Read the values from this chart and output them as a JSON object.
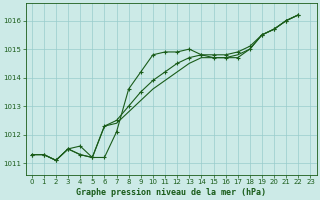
{
  "title": "Graphe pression niveau de la mer (hPa)",
  "bg_color": "#cceae7",
  "grid_color": "#99cccc",
  "line_color": "#1a5c1a",
  "xlim": [
    -0.5,
    23.5
  ],
  "ylim": [
    1010.6,
    1016.6
  ],
  "yticks": [
    1011,
    1012,
    1013,
    1014,
    1015,
    1016
  ],
  "xticks": [
    0,
    1,
    2,
    3,
    4,
    5,
    6,
    7,
    8,
    9,
    10,
    11,
    12,
    13,
    14,
    15,
    16,
    17,
    18,
    19,
    20,
    21,
    22,
    23
  ],
  "line1_x": [
    0,
    1,
    2,
    3,
    4,
    5,
    6,
    7,
    8,
    9,
    10,
    11,
    12,
    13,
    14,
    15,
    16,
    17,
    18,
    19,
    20,
    21,
    22
  ],
  "line1_y": [
    1011.3,
    1011.3,
    1011.1,
    1011.5,
    1011.6,
    1011.2,
    1011.2,
    1012.1,
    1013.6,
    1014.2,
    1014.8,
    1014.9,
    1014.9,
    1015.0,
    1014.8,
    1014.7,
    1014.7,
    1014.7,
    1015.0,
    1015.5,
    1015.7,
    1016.0,
    1016.2
  ],
  "line2_x": [
    0,
    1,
    2,
    3,
    4,
    5,
    6,
    7,
    8,
    9,
    10,
    11,
    12,
    13,
    14,
    15,
    16,
    17,
    18,
    19,
    20,
    21,
    22
  ],
  "line2_y": [
    1011.3,
    1011.3,
    1011.1,
    1011.5,
    1011.3,
    1011.2,
    1012.3,
    1012.5,
    1013.0,
    1013.5,
    1013.9,
    1014.2,
    1014.5,
    1014.7,
    1014.8,
    1014.8,
    1014.8,
    1014.9,
    1015.1,
    1015.5,
    1015.7,
    1016.0,
    1016.2
  ],
  "line3_x": [
    0,
    1,
    2,
    3,
    4,
    5,
    6,
    7,
    8,
    9,
    10,
    11,
    12,
    13,
    14,
    15,
    16,
    17,
    18,
    19,
    20,
    21,
    22
  ],
  "line3_y": [
    1011.3,
    1011.3,
    1011.1,
    1011.5,
    1011.3,
    1011.2,
    1012.3,
    1012.4,
    1012.8,
    1013.2,
    1013.6,
    1013.9,
    1014.2,
    1014.5,
    1014.7,
    1014.7,
    1014.7,
    1014.8,
    1015.0,
    1015.5,
    1015.7,
    1016.0,
    1016.2
  ],
  "title_fontsize": 6,
  "tick_fontsize": 5
}
